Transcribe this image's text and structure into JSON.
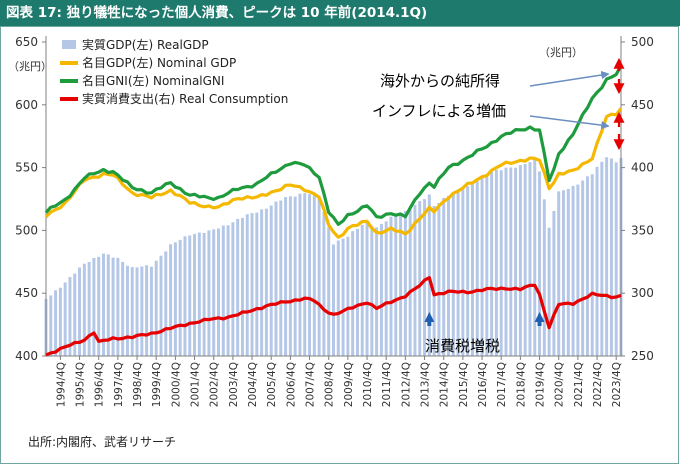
{
  "title": "図表 17: 独り犠牲になった個人消費、ピークは 10 年前(2014.1Q)",
  "source": "出所:内閣府、武者リサーチ",
  "chart_data": {
    "type": "bar+line",
    "unit_left": "（兆円）",
    "unit_right": "（兆円）",
    "left_axis": {
      "min": 400,
      "max": 650,
      "ticks": [
        400,
        450,
        500,
        550,
        600,
        650
      ]
    },
    "right_axis": {
      "min": 250,
      "max": 500,
      "ticks": [
        250,
        300,
        350,
        400,
        450,
        500
      ]
    },
    "x_tick_labels": [
      "1994/4Q",
      "1995/4Q",
      "1996/4Q",
      "1997/4Q",
      "1998/4Q",
      "1999/4Q",
      "2000/4Q",
      "2001/4Q",
      "2002/4Q",
      "2003/4Q",
      "2004/4Q",
      "2005/4Q",
      "2006/4Q",
      "2007/4Q",
      "2008/4Q",
      "2009/4Q",
      "2010/4Q",
      "2011/4Q",
      "2012/4Q",
      "2013/4Q",
      "2014/4Q",
      "2015/4Q",
      "2016/4Q",
      "2017/4Q",
      "2018/4Q",
      "2019/4Q",
      "2020/4Q",
      "2021/4Q",
      "2022/4Q",
      "2023/4Q"
    ],
    "start_quarter": "1994/1Q",
    "end_quarter": "2024/1Q",
    "legend": [
      {
        "key": "real_gdp",
        "label": "実質GDP(左) RealGDP",
        "color": "#b4c7e7"
      },
      {
        "key": "nominal_gdp",
        "label": "名目GDP(左) Nominal GDP",
        "color": "#f5b800"
      },
      {
        "key": "gni",
        "label": "名目GNI(左) NominalGNI",
        "color": "#1e9b3c"
      },
      {
        "key": "consumption",
        "label": "実質消費支出(右) Real Consumption",
        "color": "#e60000"
      }
    ],
    "annotations": {
      "overseas_income": "海外からの純所得",
      "inflation_increase": "インフレによる増価",
      "tax_hike": "消費税増税"
    },
    "anchors": {
      "real_gdp": [
        [
          1994.0,
          446
        ],
        [
          1995.0,
          458
        ],
        [
          1996.0,
          474
        ],
        [
          1997.0,
          481
        ],
        [
          1997.75,
          478
        ],
        [
          1998.5,
          470
        ],
        [
          1999.5,
          472
        ],
        [
          2000.5,
          488
        ],
        [
          2001.5,
          497
        ],
        [
          2002.5,
          499
        ],
        [
          2003.5,
          505
        ],
        [
          2004.5,
          512
        ],
        [
          2005.5,
          518
        ],
        [
          2006.5,
          526
        ],
        [
          2007.5,
          530
        ],
        [
          2008.25,
          527
        ],
        [
          2009.0,
          490
        ],
        [
          2009.75,
          495
        ],
        [
          2010.75,
          508
        ],
        [
          2011.25,
          502
        ],
        [
          2012.0,
          510
        ],
        [
          2013.0,
          517
        ],
        [
          2014.0,
          528
        ],
        [
          2014.25,
          520
        ],
        [
          2015.0,
          528
        ],
        [
          2016.0,
          535
        ],
        [
          2017.0,
          545
        ],
        [
          2018.0,
          550
        ],
        [
          2018.75,
          551
        ],
        [
          2019.5,
          556
        ],
        [
          2019.75,
          548
        ],
        [
          2020.25,
          502
        ],
        [
          2020.75,
          530
        ],
        [
          2021.5,
          535
        ],
        [
          2022.5,
          545
        ],
        [
          2023.25,
          559
        ],
        [
          2023.75,
          555
        ],
        [
          2024.0,
          558
        ]
      ],
      "nominal_gdp": [
        [
          1994.0,
          511
        ],
        [
          1995.0,
          522
        ],
        [
          1996.0,
          540
        ],
        [
          1997.0,
          545
        ],
        [
          1997.5,
          544
        ],
        [
          1998.5,
          530
        ],
        [
          1999.5,
          526
        ],
        [
          2000.5,
          532
        ],
        [
          2001.5,
          522
        ],
        [
          2002.5,
          519
        ],
        [
          2003.0,
          518
        ],
        [
          2004.0,
          526
        ],
        [
          2005.0,
          526
        ],
        [
          2006.0,
          532
        ],
        [
          2006.75,
          536
        ],
        [
          2007.5,
          533
        ],
        [
          2008.25,
          527
        ],
        [
          2008.75,
          504
        ],
        [
          2009.25,
          494
        ],
        [
          2009.75,
          502
        ],
        [
          2010.75,
          507
        ],
        [
          2011.25,
          498
        ],
        [
          2012.0,
          501
        ],
        [
          2012.75,
          497
        ],
        [
          2013.5,
          510
        ],
        [
          2014.0,
          517
        ],
        [
          2014.25,
          515
        ],
        [
          2015.0,
          527
        ],
        [
          2016.0,
          536
        ],
        [
          2017.0,
          545
        ],
        [
          2017.75,
          552
        ],
        [
          2018.5,
          555
        ],
        [
          2019.25,
          557
        ],
        [
          2019.75,
          556
        ],
        [
          2020.25,
          534
        ],
        [
          2020.5,
          539
        ],
        [
          2020.75,
          545
        ],
        [
          2021.5,
          547
        ],
        [
          2022.5,
          558
        ],
        [
          2023.25,
          590
        ],
        [
          2023.75,
          593
        ],
        [
          2024.0,
          597
        ]
      ],
      "gni": [
        [
          1994.0,
          515
        ],
        [
          1995.0,
          524
        ],
        [
          1996.0,
          542
        ],
        [
          1997.0,
          548
        ],
        [
          1997.5,
          547
        ],
        [
          1998.5,
          534
        ],
        [
          1999.5,
          530
        ],
        [
          2000.5,
          538
        ],
        [
          2001.5,
          528
        ],
        [
          2002.5,
          526
        ],
        [
          2003.0,
          526
        ],
        [
          2004.0,
          533
        ],
        [
          2005.0,
          537
        ],
        [
          2006.0,
          547
        ],
        [
          2006.75,
          554
        ],
        [
          2007.5,
          552
        ],
        [
          2008.25,
          543
        ],
        [
          2008.75,
          515
        ],
        [
          2009.25,
          504
        ],
        [
          2009.75,
          512
        ],
        [
          2010.75,
          520
        ],
        [
          2011.25,
          510
        ],
        [
          2012.0,
          514
        ],
        [
          2012.75,
          511
        ],
        [
          2013.5,
          530
        ],
        [
          2014.0,
          538
        ],
        [
          2014.25,
          535
        ],
        [
          2015.0,
          550
        ],
        [
          2016.0,
          558
        ],
        [
          2017.0,
          567
        ],
        [
          2017.75,
          575
        ],
        [
          2018.5,
          579
        ],
        [
          2019.25,
          582
        ],
        [
          2019.75,
          580
        ],
        [
          2020.25,
          540
        ],
        [
          2020.5,
          548
        ],
        [
          2020.75,
          561
        ],
        [
          2021.5,
          577
        ],
        [
          2022.5,
          605
        ],
        [
          2023.25,
          620
        ],
        [
          2023.75,
          624
        ],
        [
          2024.0,
          630
        ]
      ],
      "consumption": [
        [
          1994.0,
          251
        ],
        [
          1995.0,
          257
        ],
        [
          1996.0,
          263
        ],
        [
          1996.5,
          269
        ],
        [
          1996.75,
          261
        ],
        [
          1997.5,
          264
        ],
        [
          1998.5,
          265
        ],
        [
          1999.5,
          268
        ],
        [
          2000.5,
          272
        ],
        [
          2001.5,
          276
        ],
        [
          2002.5,
          279
        ],
        [
          2003.5,
          281
        ],
        [
          2004.5,
          285
        ],
        [
          2005.5,
          290
        ],
        [
          2006.5,
          293
        ],
        [
          2007.5,
          296
        ],
        [
          2008.0,
          294
        ],
        [
          2008.5,
          287
        ],
        [
          2009.0,
          283
        ],
        [
          2009.75,
          287
        ],
        [
          2010.75,
          293
        ],
        [
          2011.25,
          288
        ],
        [
          2012.0,
          293
        ],
        [
          2012.75,
          298
        ],
        [
          2013.5,
          306
        ],
        [
          2014.0,
          313
        ],
        [
          2014.25,
          299
        ],
        [
          2015.0,
          301
        ],
        [
          2016.0,
          301
        ],
        [
          2017.0,
          303
        ],
        [
          2018.0,
          304
        ],
        [
          2018.75,
          303
        ],
        [
          2019.5,
          307
        ],
        [
          2019.75,
          299
        ],
        [
          2020.25,
          273
        ],
        [
          2020.75,
          291
        ],
        [
          2021.5,
          292
        ],
        [
          2022.5,
          299
        ],
        [
          2023.25,
          298
        ],
        [
          2023.75,
          297
        ],
        [
          2024.0,
          298
        ]
      ]
    }
  }
}
